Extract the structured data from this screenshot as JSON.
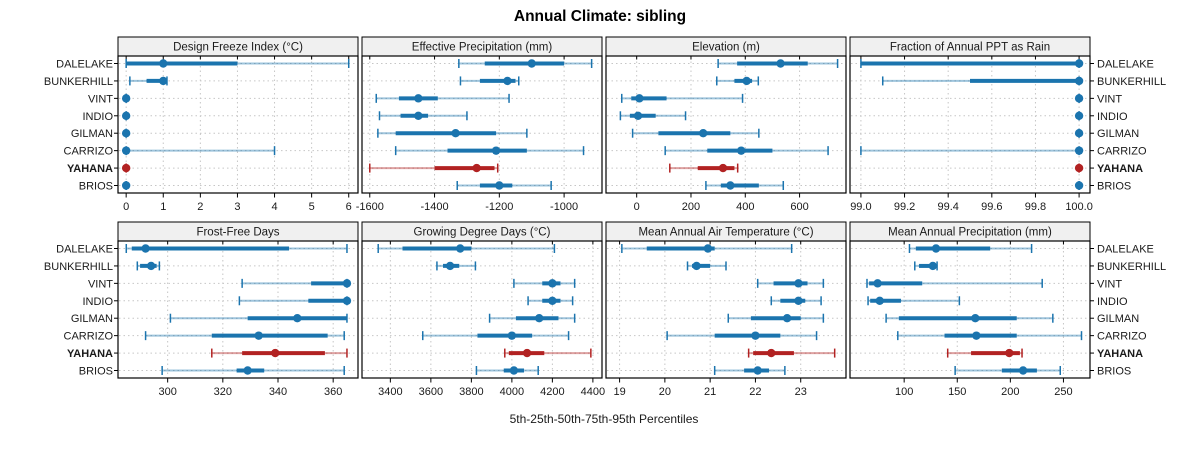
{
  "title": "Annual Climate: sibling",
  "xlabel": "5th-25th-50th-75th-95th Percentiles",
  "highlight_site": "YAHANA",
  "colors": {
    "blue": "#1b74ae",
    "red": "#b22222",
    "grid": "#c6c6c6",
    "strip_bg": "#f0f0f0",
    "border": "#000000",
    "text": "#1a1a1a"
  },
  "chart_data": {
    "type": "trellis-percentile-dotplot",
    "title": "Annual Climate: sibling",
    "xlabel": "5th-25th-50th-75th-95th Percentiles",
    "percentile_order": [
      "p5",
      "p25",
      "p50",
      "p75",
      "p95"
    ],
    "legend_position": "none",
    "grid": "dotted",
    "sites": [
      "DALELAKE",
      "BUNKERHILL",
      "VINT",
      "INDIO",
      "GILMAN",
      "CARRIZO",
      "YAHANA",
      "BRIOS"
    ],
    "panels": [
      {
        "title": "Design Freeze Index (°C)",
        "row": 0,
        "col": 0,
        "xlim": [
          -0.22,
          6.25
        ],
        "ticks": [
          0,
          1,
          2,
          3,
          4,
          5,
          6
        ],
        "tick_labels": [
          "0",
          "1",
          "2",
          "3",
          "4",
          "5",
          "6"
        ],
        "values": {
          "DALELAKE": [
            0,
            0,
            1,
            3,
            6
          ],
          "BUNKERHILL": [
            0.1,
            0.55,
            1,
            1.05,
            1.1
          ],
          "VINT": [
            0,
            0,
            0,
            0,
            0
          ],
          "INDIO": [
            0,
            0,
            0,
            0,
            0
          ],
          "GILMAN": [
            0,
            0,
            0,
            0,
            0
          ],
          "CARRIZO": [
            0,
            0,
            0,
            0,
            4
          ],
          "YAHANA": [
            0,
            0,
            0,
            0,
            0
          ],
          "BRIOS": [
            0,
            0,
            0,
            0,
            0
          ]
        }
      },
      {
        "title": "Effective Precipitation (mm)",
        "row": 0,
        "col": 1,
        "xlim": [
          -1624,
          -883
        ],
        "ticks": [
          -1600,
          -1400,
          -1200,
          -1000
        ],
        "tick_labels": [
          "-1600",
          "-1400",
          "-1200",
          "-1000"
        ],
        "values": {
          "DALELAKE": [
            -1325,
            -1245,
            -1100,
            -1000,
            -915
          ],
          "BUNKERHILL": [
            -1320,
            -1260,
            -1175,
            -1150,
            -1140
          ],
          "VINT": [
            -1580,
            -1510,
            -1450,
            -1390,
            -1170
          ],
          "INDIO": [
            -1570,
            -1505,
            -1450,
            -1420,
            -1300
          ],
          "GILMAN": [
            -1575,
            -1520,
            -1335,
            -1210,
            -1115
          ],
          "CARRIZO": [
            -1520,
            -1360,
            -1210,
            -1115,
            -940
          ],
          "YAHANA": [
            -1600,
            -1400,
            -1270,
            -1215,
            -1205
          ],
          "BRIOS": [
            -1330,
            -1260,
            -1200,
            -1160,
            -1040
          ]
        }
      },
      {
        "title": "Elevation (m)",
        "row": 0,
        "col": 2,
        "xlim": [
          -113,
          771
        ],
        "ticks": [
          0,
          200,
          400,
          600
        ],
        "tick_labels": [
          "0",
          "200",
          "400",
          "600"
        ],
        "values": {
          "DALELAKE": [
            300,
            370,
            530,
            630,
            740
          ],
          "BUNKERHILL": [
            295,
            360,
            405,
            425,
            448
          ],
          "VINT": [
            -55,
            -20,
            10,
            110,
            390
          ],
          "INDIO": [
            -60,
            -25,
            5,
            70,
            180
          ],
          "GILMAN": [
            -15,
            80,
            245,
            345,
            450
          ],
          "CARRIZO": [
            105,
            260,
            385,
            500,
            705
          ],
          "YAHANA": [
            122,
            225,
            318,
            360,
            372
          ],
          "BRIOS": [
            255,
            310,
            345,
            450,
            540
          ]
        }
      },
      {
        "title": "Fraction of Annual PPT as Rain",
        "row": 0,
        "col": 3,
        "xlim": [
          98.95,
          100.05
        ],
        "ticks": [
          99.0,
          99.2,
          99.4,
          99.6,
          99.8,
          100.0
        ],
        "tick_labels": [
          "99.0",
          "99.2",
          "99.4",
          "99.6",
          "99.8",
          "100.0"
        ],
        "values": {
          "DALELAKE": [
            99.0,
            99.0,
            100,
            100,
            100
          ],
          "BUNKERHILL": [
            99.1,
            99.5,
            100,
            100,
            100
          ],
          "VINT": [
            100,
            100,
            100,
            100,
            100
          ],
          "INDIO": [
            100,
            100,
            100,
            100,
            100
          ],
          "GILMAN": [
            100,
            100,
            100,
            100,
            100
          ],
          "CARRIZO": [
            99.0,
            100,
            100,
            100,
            100
          ],
          "YAHANA": [
            100,
            100,
            100,
            100,
            100
          ],
          "BRIOS": [
            100,
            100,
            100,
            100,
            100
          ]
        }
      },
      {
        "title": "Frost-Free Days",
        "row": 1,
        "col": 0,
        "xlim": [
          282,
          369
        ],
        "ticks": [
          300,
          320,
          340,
          360
        ],
        "tick_labels": [
          "300",
          "320",
          "340",
          "360"
        ],
        "values": {
          "DALELAKE": [
            285,
            287,
            292,
            344,
            365
          ],
          "BUNKERHILL": [
            289,
            290,
            294,
            296,
            297
          ],
          "VINT": [
            327,
            352,
            365,
            365,
            365
          ],
          "INDIO": [
            326,
            351,
            365,
            365,
            365
          ],
          "GILMAN": [
            301,
            329,
            347,
            365,
            365
          ],
          "CARRIZO": [
            292,
            316,
            333,
            358,
            364
          ],
          "YAHANA": [
            316,
            327,
            339,
            357,
            365
          ],
          "BRIOS": [
            298,
            325,
            329,
            335,
            364
          ]
        }
      },
      {
        "title": "Growing Degree Days (°C)",
        "row": 1,
        "col": 1,
        "xlim": [
          3260,
          4445
        ],
        "ticks": [
          3400,
          3600,
          3800,
          4000,
          4200,
          4400
        ],
        "tick_labels": [
          "3400",
          "3600",
          "3800",
          "4000",
          "4200",
          "4400"
        ],
        "values": {
          "DALELAKE": [
            3340,
            3460,
            3745,
            3800,
            4210
          ],
          "BUNKERHILL": [
            3630,
            3660,
            3695,
            3740,
            3820
          ],
          "VINT": [
            4010,
            4150,
            4200,
            4240,
            4310
          ],
          "INDIO": [
            4080,
            4150,
            4200,
            4240,
            4300
          ],
          "GILMAN": [
            3890,
            4020,
            4135,
            4230,
            4310
          ],
          "CARRIZO": [
            3560,
            3830,
            4000,
            4100,
            4280
          ],
          "YAHANA": [
            3965,
            3985,
            4075,
            4160,
            4390
          ],
          "BRIOS": [
            3825,
            3960,
            4010,
            4060,
            4130
          ]
        }
      },
      {
        "title": "Mean Annual Air Temperature (°C)",
        "row": 1,
        "col": 2,
        "xlim": [
          18.7,
          24.0
        ],
        "ticks": [
          19,
          20,
          21,
          22,
          23
        ],
        "tick_labels": [
          "19",
          "20",
          "21",
          "22",
          "23"
        ],
        "values": {
          "DALELAKE": [
            19.05,
            19.6,
            20.95,
            21.1,
            22.8
          ],
          "BUNKERHILL": [
            20.5,
            20.6,
            20.7,
            21.0,
            21.35
          ],
          "VINT": [
            22.05,
            22.4,
            22.95,
            23.15,
            23.5
          ],
          "INDIO": [
            22.35,
            22.55,
            22.95,
            23.1,
            23.45
          ],
          "GILMAN": [
            21.4,
            21.9,
            22.7,
            23.0,
            23.5
          ],
          "CARRIZO": [
            20.05,
            21.1,
            22.0,
            22.55,
            23.35
          ],
          "YAHANA": [
            21.85,
            21.95,
            22.35,
            22.85,
            23.75
          ],
          "BRIOS": [
            21.1,
            21.75,
            22.05,
            22.3,
            22.65
          ]
        }
      },
      {
        "title": "Mean Annual Precipitation (mm)",
        "row": 1,
        "col": 3,
        "xlim": [
          49,
          275
        ],
        "ticks": [
          100,
          150,
          200,
          250
        ],
        "tick_labels": [
          "100",
          "150",
          "200",
          "250"
        ],
        "values": {
          "DALELAKE": [
            105,
            111,
            130,
            181,
            220
          ],
          "BUNKERHILL": [
            110,
            114,
            127,
            129,
            131
          ],
          "VINT": [
            65,
            67,
            75,
            117,
            230
          ],
          "INDIO": [
            66,
            68,
            77,
            97,
            152
          ],
          "GILMAN": [
            83,
            95,
            167,
            206,
            240
          ],
          "CARRIZO": [
            94,
            138,
            168,
            206,
            267
          ],
          "YAHANA": [
            141,
            163,
            199,
            209,
            211
          ],
          "BRIOS": [
            148,
            192,
            212,
            225,
            247
          ]
        }
      }
    ]
  }
}
